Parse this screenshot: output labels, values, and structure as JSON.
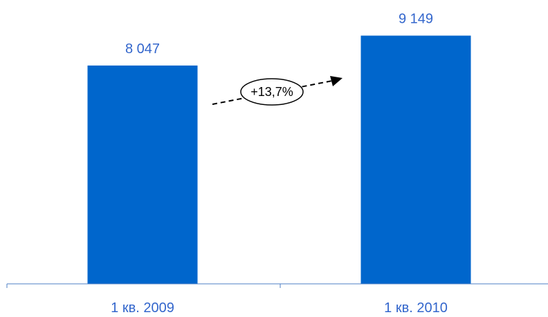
{
  "chart_data": {
    "type": "bar",
    "categories": [
      "1 кв. 2009",
      "1 кв. 2010"
    ],
    "values": [
      8047,
      9149
    ],
    "value_labels": [
      "8 047",
      "9 149"
    ],
    "annotation": "+13,7%",
    "ylim": [
      0,
      9800
    ],
    "grid": false,
    "legend": "none",
    "colors": {
      "bar": "#0066CC",
      "labels": "#3366CC",
      "axis": "#4D7FC4",
      "annotation": "#000000"
    }
  }
}
